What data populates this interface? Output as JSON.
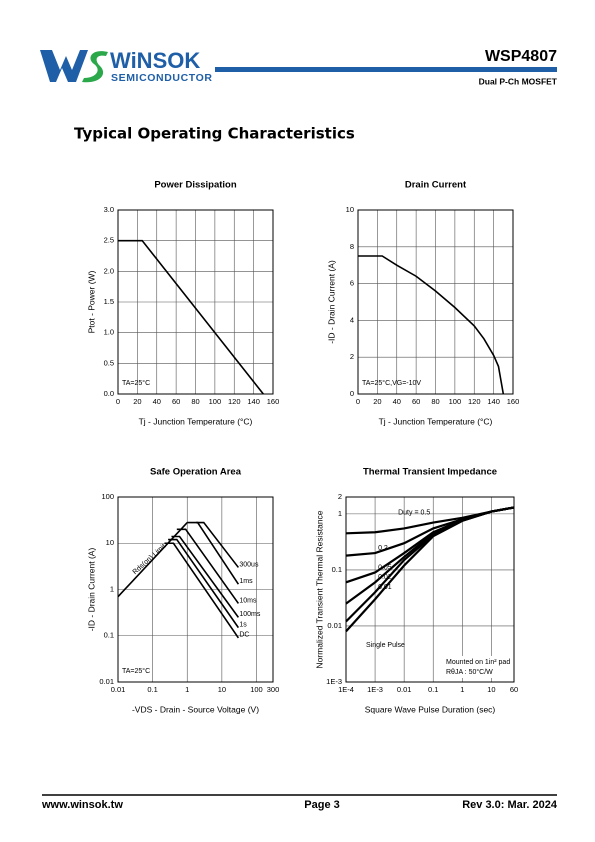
{
  "header": {
    "brand": "WiNSOK",
    "brand_sub": "SEMICONDUCTOR",
    "part": "WSP4807",
    "part_desc": "Dual P-Ch MOSFET"
  },
  "section_title": "Typical Operating Characteristics",
  "chart_data": [
    {
      "type": "line",
      "title": "Power Dissipation",
      "x_label": "Tj - Junction Temperature (°C)",
      "y_label": "Ptot - Power (W)",
      "x": [
        0,
        25,
        150
      ],
      "values": [
        2.5,
        2.5,
        0
      ],
      "color": "#000000",
      "xlim": [
        0,
        160
      ],
      "xticks": [
        0,
        20,
        40,
        60,
        80,
        100,
        120,
        140,
        160
      ],
      "ylim": [
        0,
        3
      ],
      "yticks": [
        {
          "value": 0,
          "label": "0.0"
        },
        0.5,
        {
          "value": 1,
          "label": "1.0"
        },
        1.5,
        {
          "value": 2,
          "label": "2.0"
        },
        2.5,
        {
          "value": 3,
          "label": "3.0"
        }
      ],
      "grid": true,
      "annotations": [
        "TA=25°C"
      ]
    },
    {
      "type": "line",
      "title": "Drain Current",
      "x_label": "Tj - Junction Temperature (°C)",
      "y_label": "-ID - Drain Current (A)",
      "x": [
        0,
        25,
        40,
        60,
        80,
        100,
        120,
        130,
        140,
        145,
        150
      ],
      "values": [
        7.5,
        7.5,
        7.0,
        6.4,
        5.6,
        4.7,
        3.7,
        3.0,
        2.1,
        1.5,
        0
      ],
      "color": "#000000",
      "xlim": [
        0,
        160
      ],
      "xticks": [
        0,
        20,
        40,
        60,
        80,
        100,
        120,
        140,
        160
      ],
      "ylim": [
        0,
        10
      ],
      "yticks": [
        0,
        2,
        4,
        6,
        8,
        10
      ],
      "grid": true,
      "annotations": [
        "TA=25°C,VG=-10V"
      ]
    },
    {
      "type": "line",
      "title": "Safe Operation Area",
      "x_label": "-VDS - Drain - Source Voltage (V)",
      "y_label": "-ID - Drain Current (A)",
      "xlog": true,
      "ylog": true,
      "color": "#000000",
      "xlim": [
        0.01,
        300
      ],
      "xticks": [
        0.01,
        0.1,
        1,
        10,
        100,
        300
      ],
      "ylim": [
        0.01,
        100
      ],
      "yticks": [
        0.01,
        0.1,
        1,
        10,
        100
      ],
      "grid": true,
      "annotations": [
        "TA=25°C"
      ],
      "series": [
        {
          "name": "Rds(on) Limit",
          "x": [
            0.01,
            1.0
          ],
          "values": [
            0.7,
            28
          ]
        },
        {
          "name": "300us",
          "x": [
            1.8,
            3,
            30
          ],
          "values": [
            28,
            28,
            3
          ]
        },
        {
          "name": "1ms",
          "x": [
            1.0,
            2,
            30
          ],
          "values": [
            28,
            28,
            1.3
          ]
        },
        {
          "name": "10ms",
          "x": [
            0.5,
            0.9,
            30
          ],
          "values": [
            20,
            20,
            0.5
          ]
        },
        {
          "name": "100ms",
          "x": [
            0.35,
            0.6,
            30
          ],
          "values": [
            14,
            14,
            0.25
          ]
        },
        {
          "name": "1s",
          "x": [
            0.28,
            0.5,
            30
          ],
          "values": [
            12,
            12,
            0.15
          ]
        },
        {
          "name": "DC",
          "x": [
            0.22,
            0.4,
            30
          ],
          "values": [
            10,
            10,
            0.09
          ]
        }
      ]
    },
    {
      "type": "line",
      "title": "Thermal Transient Impedance",
      "x_label": "Square Wave Pulse Duration (sec)",
      "y_label": "Normalized Transient Thermal Resistance",
      "xlog": true,
      "ylog": true,
      "color": "#000000",
      "xlim": [
        0.0001,
        60
      ],
      "xticks": [
        {
          "value": 0.0001,
          "label": "1E-4"
        },
        {
          "value": 0.001,
          "label": "1E-3"
        },
        0.01,
        0.1,
        1,
        10,
        60
      ],
      "ylim": [
        0.001,
        2
      ],
      "yticks": [
        {
          "value": 0.001,
          "label": "1E-3"
        },
        0.01,
        0.1,
        1,
        2
      ],
      "grid": true,
      "annotations": [
        "Mounted on 1in² pad",
        "RθJA : 50°C/W"
      ],
      "series": [
        {
          "name": "Duty = 0.5",
          "x": [
            0.0001,
            0.001,
            0.01,
            0.1,
            1,
            10,
            60
          ],
          "values": [
            0.45,
            0.47,
            0.55,
            0.7,
            0.85,
            1.1,
            1.3
          ]
        },
        {
          "name": "0.2",
          "x": [
            0.0001,
            0.001,
            0.01,
            0.1,
            1,
            10,
            60
          ],
          "values": [
            0.18,
            0.2,
            0.3,
            0.55,
            0.8,
            1.1,
            1.3
          ]
        },
        {
          "name": "0.05",
          "x": [
            0.0001,
            0.001,
            0.01,
            0.1,
            1,
            10,
            60
          ],
          "values": [
            0.06,
            0.09,
            0.2,
            0.47,
            0.78,
            1.1,
            1.3
          ]
        },
        {
          "name": "0.02",
          "x": [
            0.0001,
            0.001,
            0.01,
            0.1,
            1,
            10,
            60
          ],
          "values": [
            0.025,
            0.06,
            0.17,
            0.45,
            0.77,
            1.1,
            1.3
          ]
        },
        {
          "name": "0.01",
          "x": [
            0.0001,
            0.001,
            0.01,
            0.1,
            1,
            10,
            60
          ],
          "values": [
            0.012,
            0.04,
            0.15,
            0.42,
            0.76,
            1.1,
            1.3
          ]
        },
        {
          "name": "Single Pulse",
          "x": [
            0.0001,
            0.001,
            0.01,
            0.1,
            1,
            10,
            60
          ],
          "values": [
            0.008,
            0.03,
            0.12,
            0.4,
            0.75,
            1.1,
            1.3
          ]
        }
      ]
    }
  ],
  "footer": {
    "url": "www.winsok.tw",
    "page": "Page 3",
    "rev": "Rev 3.0: Mar. 2024"
  }
}
